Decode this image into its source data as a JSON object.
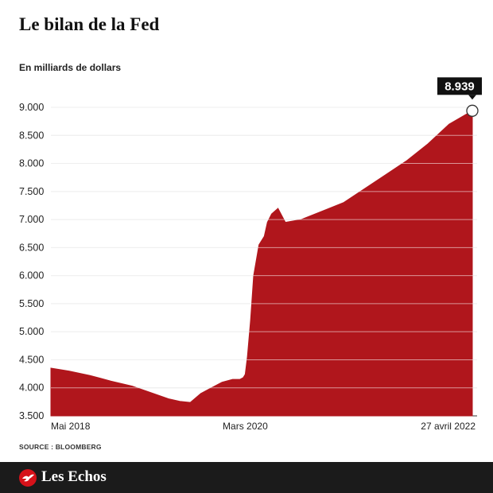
{
  "chart_data": {
    "type": "area",
    "title": "Le bilan de la Fed",
    "ylabel": "En milliards de dollars",
    "xlabel": "",
    "ylim": [
      3500,
      9500
    ],
    "yticks": [
      "9.000",
      "8.500",
      "8.000",
      "7.500",
      "7.000",
      "6.500",
      "6.000",
      "5.500",
      "5.000",
      "4.500",
      "4.000",
      "3.500"
    ],
    "ytick_values": [
      9000,
      8500,
      8000,
      7500,
      7000,
      6500,
      6000,
      5500,
      5000,
      4500,
      4000,
      3500
    ],
    "xtick_labels": [
      "Mai 2018",
      "Mars 2020",
      "27 avril 2022"
    ],
    "xtick_values": [
      2018.33,
      2020.17,
      2022.32
    ],
    "x": [
      2018.33,
      2018.5,
      2018.7,
      2018.9,
      2019.1,
      2019.3,
      2019.45,
      2019.55,
      2019.65,
      2019.75,
      2019.85,
      2019.95,
      2020.05,
      2020.12,
      2020.15,
      2020.17,
      2020.19,
      2020.22,
      2020.25,
      2020.3,
      2020.35,
      2020.38,
      2020.42,
      2020.48,
      2020.55,
      2020.7,
      2020.9,
      2021.1,
      2021.3,
      2021.5,
      2021.7,
      2021.9,
      2022.1,
      2022.32
    ],
    "values": [
      4350,
      4300,
      4220,
      4120,
      4030,
      3900,
      3800,
      3760,
      3740,
      3900,
      4000,
      4100,
      4150,
      4150,
      4180,
      4240,
      4550,
      5200,
      6000,
      6550,
      6700,
      6950,
      7100,
      7200,
      6950,
      7000,
      7150,
      7300,
      7550,
      7800,
      8050,
      8350,
      8700,
      8939
    ],
    "annotation": {
      "label": "8.939",
      "x": 2022.32,
      "value": 8939
    },
    "grid": true,
    "color": "#b0161c"
  },
  "source": "SOURCE : BLOOMBERG",
  "brand": {
    "name": "Les Echos",
    "logo_icon": "les-echos-bird-icon",
    "footer_color": "#1b1b1b"
  }
}
